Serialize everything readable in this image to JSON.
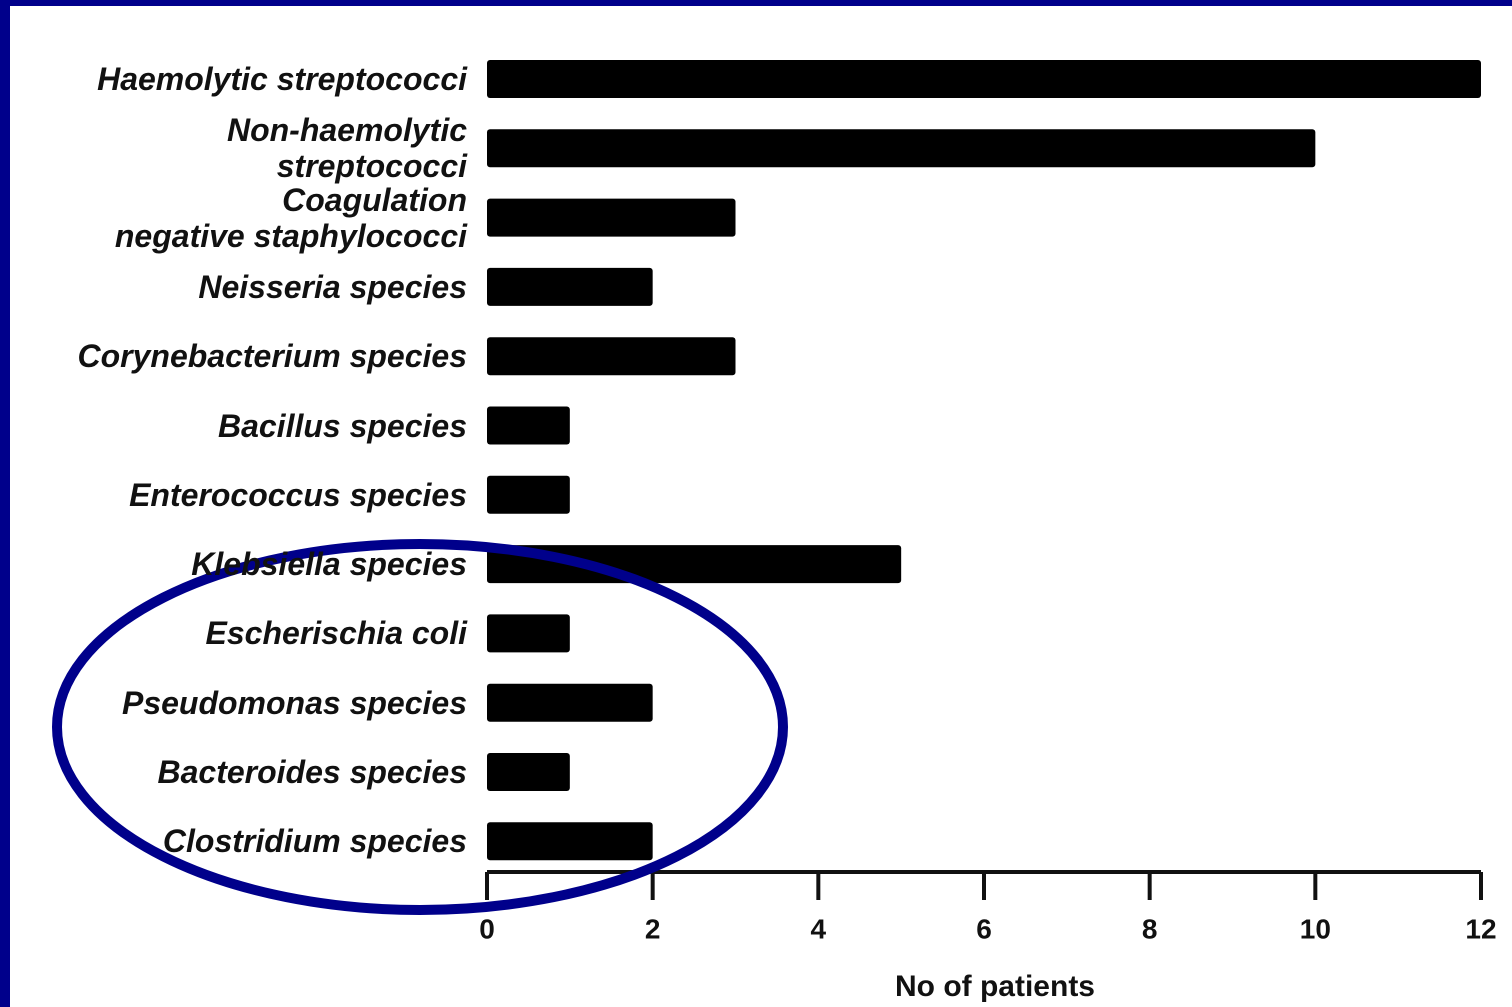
{
  "chart_data": {
    "type": "barh",
    "categories": [
      "Haemolytic streptococci",
      "Non-haemolytic\nstreptococci",
      "Coagulation\nnegative staphylococci",
      "Neisseria species",
      "Corynebacterium species",
      "Bacillus species",
      "Enterococcus species",
      "Klebsiella species",
      "Escherischia coli",
      "Pseudomonas species",
      "Bacteroides species",
      "Clostridium species"
    ],
    "values": [
      12,
      10,
      3,
      2,
      3,
      1,
      1,
      5,
      1,
      2,
      1,
      2
    ],
    "color": "#000000",
    "xlabel": "No of patients",
    "xlim": [
      0,
      12
    ],
    "xticks": [
      0,
      2,
      4,
      6,
      8,
      10,
      12
    ]
  }
}
